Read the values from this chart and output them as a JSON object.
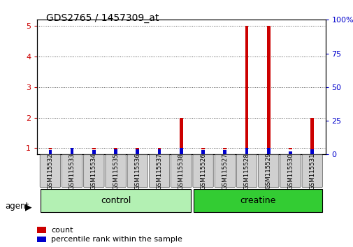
{
  "title": "GDS2765 / 1457309_at",
  "samples": [
    "GSM115532",
    "GSM115533",
    "GSM115534",
    "GSM115535",
    "GSM115536",
    "GSM115537",
    "GSM115538",
    "GSM115526",
    "GSM115527",
    "GSM115528",
    "GSM115529",
    "GSM115530",
    "GSM115531"
  ],
  "count_values": [
    1.0,
    1.0,
    1.0,
    1.0,
    1.0,
    1.0,
    2.0,
    1.0,
    1.0,
    5.0,
    5.0,
    1.0,
    2.0
  ],
  "percentile_values_pct": [
    3.0,
    5.0,
    3.0,
    4.0,
    4.0,
    4.0,
    5.0,
    3.0,
    3.0,
    5.0,
    5.0,
    2.0,
    4.0
  ],
  "groups": [
    {
      "label": "control",
      "start": 0,
      "end": 6,
      "color": "#b3f0b3"
    },
    {
      "label": "creatine",
      "start": 7,
      "end": 12,
      "color": "#33cc33"
    }
  ],
  "ylim_left": [
    0.8,
    5.2
  ],
  "ylim_right": [
    0,
    100
  ],
  "yticks_left": [
    1,
    2,
    3,
    4,
    5
  ],
  "yticks_right": [
    0,
    25,
    50,
    75,
    100
  ],
  "bar_width": 0.15,
  "count_color": "#cc0000",
  "percentile_color": "#0000cc",
  "bg_color": "#ffffff",
  "grid_color": "#000000",
  "agent_label": "agent",
  "legend_count": "count",
  "legend_pct": "percentile rank within the sample",
  "sample_box_color": "#d0d0d0",
  "left_axis_color": "#cc0000",
  "right_axis_color": "#0000cc"
}
